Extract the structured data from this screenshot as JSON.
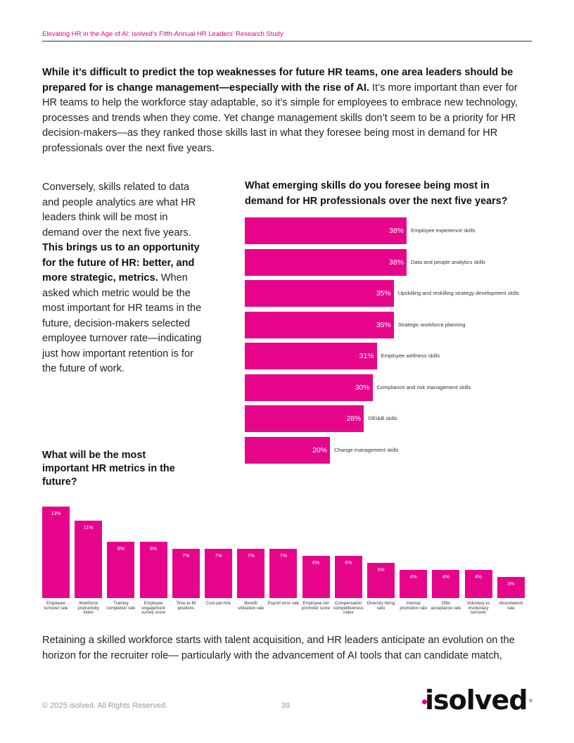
{
  "header": {
    "title": "Elevating HR in the Age of AI: isolved’s Fifth-Annual HR Leaders’ Research Study"
  },
  "intro": {
    "bold": "While it’s difficult to predict the top weaknesses for future HR teams, one area leaders should be prepared for is change management—especially with the rise of AI.",
    "text": " It’s more important than ever for HR teams to help the workforce stay adaptable, so it’s simple for employees to embrace new technology, processes and trends when they come. Yet change management skills don’t seem to be a priority for HR decision-makers—as they ranked those skills last in what they foresee being most in demand for HR professionals over the next five years."
  },
  "left_column": {
    "text1": "Conversely, skills related to data and people analytics are what HR leaders think will be most in demand over the next five years. ",
    "bold": "This brings us to an opportunity for the future of HR: better, and more strategic, metrics.",
    "text2": " When asked which metric would be the most important for HR teams in the future, decision-makers selected employee turnover rate—indicating just how important retention is for the future of work."
  },
  "outro": "Retaining a skilled workforce starts with talent acquisition, and HR leaders anticipate an evolution on the horizon for the recruiter role— particularly with the advancement of AI tools that can candidate match,",
  "footer": {
    "copyright": "© 2025 isolved. All Rights Reserved.",
    "page": "39",
    "logo_text": "isolved"
  },
  "colors": {
    "accent": "#e6058a",
    "brand_pink": "#e4007f"
  },
  "chart_data": [
    {
      "type": "bar",
      "orientation": "horizontal",
      "title": "What emerging skills do you foresee being most in demand for HR professionals over the next five years?",
      "unit": "%",
      "categories": [
        "Employee experience skills",
        "Data and people analytics skills",
        "Upskilling and reskilling strategy development skills",
        "Strategic workforce planning",
        "Employee wellness skills",
        "Compliance and risk management skills",
        "DEI&B skills",
        "Change management skills"
      ],
      "values": [
        38,
        38,
        35,
        35,
        31,
        30,
        28,
        20
      ],
      "xlim": [
        0,
        38
      ]
    },
    {
      "type": "bar",
      "orientation": "vertical",
      "title": "What will be the most important HR metrics in the future?",
      "unit": "%",
      "categories": [
        "Employee turnover rate",
        "Workforce productivity index",
        "Training completion rate",
        "Employee engagement survey score",
        "Time-to-fill positions",
        "Cost-per-hire",
        "Benefit utilization rate",
        "Payroll error rate",
        "Employee net promoter score",
        "Compensation competitiveness index",
        "Diversity hiring ratio",
        "Internal promotion rate",
        "Offer acceptance rate",
        "Voluntary vs involuntary turnover",
        "Absenteeism rate"
      ],
      "values": [
        13,
        11,
        8,
        8,
        7,
        7,
        7,
        7,
        6,
        6,
        5,
        4,
        4,
        4,
        3
      ],
      "ylim": [
        0,
        13
      ]
    }
  ]
}
